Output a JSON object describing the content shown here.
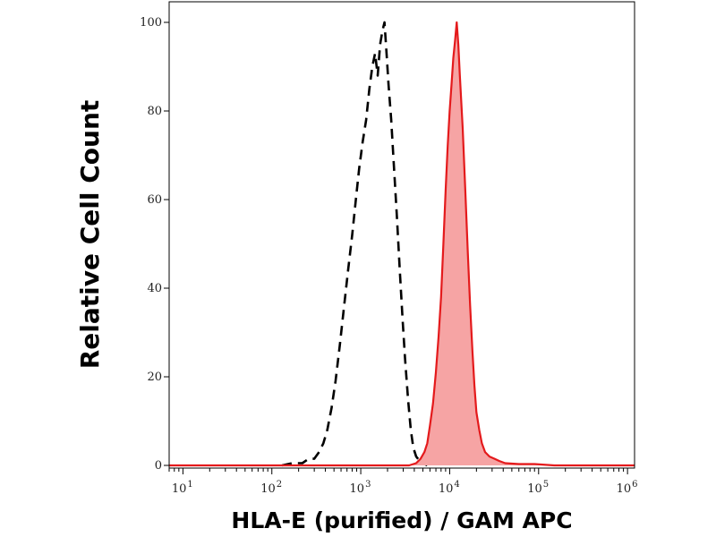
{
  "chart_data": {
    "type": "area",
    "xlabel": "HLA-E (purified) / GAM APC",
    "ylabel": "Relative Cell Count",
    "x_scale": "log",
    "xlim": [
      7,
      1200000
    ],
    "ylim": [
      0,
      100
    ],
    "x_ticks": [
      {
        "value": 10,
        "base": "10",
        "exp": "1"
      },
      {
        "value": 100,
        "base": "10",
        "exp": "2"
      },
      {
        "value": 1000,
        "base": "10",
        "exp": "3"
      },
      {
        "value": 10000,
        "base": "10",
        "exp": "4"
      },
      {
        "value": 100000,
        "base": "10",
        "exp": "5"
      },
      {
        "value": 1000000,
        "base": "10",
        "exp": "6"
      }
    ],
    "y_ticks": [
      "0",
      "20",
      "40",
      "60",
      "80",
      "100"
    ],
    "grid": false,
    "legend": "none",
    "series": [
      {
        "style": "dashed",
        "color": "#000000",
        "fill": "none",
        "points": [
          [
            130,
            0
          ],
          [
            170,
            0.5
          ],
          [
            220,
            0.5
          ],
          [
            260,
            1.5
          ],
          [
            300,
            1.5
          ],
          [
            340,
            3
          ],
          [
            380,
            5
          ],
          [
            420,
            8
          ],
          [
            470,
            13
          ],
          [
            520,
            19
          ],
          [
            580,
            27
          ],
          [
            650,
            36
          ],
          [
            720,
            44
          ],
          [
            800,
            52
          ],
          [
            880,
            60
          ],
          [
            960,
            67
          ],
          [
            1050,
            73
          ],
          [
            1150,
            78
          ],
          [
            1250,
            85
          ],
          [
            1350,
            90
          ],
          [
            1450,
            93
          ],
          [
            1550,
            88
          ],
          [
            1650,
            95
          ],
          [
            1750,
            98
          ],
          [
            1850,
            100
          ],
          [
            1950,
            93
          ],
          [
            2050,
            86
          ],
          [
            2200,
            78
          ],
          [
            2350,
            68
          ],
          [
            2550,
            56
          ],
          [
            2750,
            44
          ],
          [
            2950,
            33
          ],
          [
            3150,
            24
          ],
          [
            3400,
            15
          ],
          [
            3650,
            8
          ],
          [
            3900,
            4
          ],
          [
            4200,
            2
          ],
          [
            4600,
            1
          ],
          [
            5000,
            0.5
          ],
          [
            5600,
            0
          ]
        ]
      },
      {
        "style": "solid",
        "color": "#e41a1c",
        "fill": "#f6a4a4",
        "points": [
          [
            7,
            0
          ],
          [
            3500,
            0
          ],
          [
            4200,
            0.5
          ],
          [
            4700,
            1.5
          ],
          [
            5200,
            3
          ],
          [
            5600,
            5
          ],
          [
            6000,
            9
          ],
          [
            6500,
            14
          ],
          [
            7000,
            21
          ],
          [
            7500,
            29
          ],
          [
            8000,
            38
          ],
          [
            8500,
            50
          ],
          [
            9000,
            62
          ],
          [
            9500,
            72
          ],
          [
            10000,
            80
          ],
          [
            10500,
            86
          ],
          [
            11000,
            92
          ],
          [
            11500,
            96
          ],
          [
            12000,
            100
          ],
          [
            12500,
            95
          ],
          [
            13000,
            88
          ],
          [
            14000,
            76
          ],
          [
            15000,
            62
          ],
          [
            16000,
            48
          ],
          [
            17000,
            36
          ],
          [
            18000,
            26
          ],
          [
            19000,
            18
          ],
          [
            20000,
            12
          ],
          [
            21500,
            8
          ],
          [
            23000,
            5
          ],
          [
            25000,
            3
          ],
          [
            28000,
            2
          ],
          [
            32000,
            1.5
          ],
          [
            36000,
            1
          ],
          [
            42000,
            0.5
          ],
          [
            60000,
            0.3
          ],
          [
            90000,
            0.3
          ],
          [
            150000,
            0
          ],
          [
            400000,
            0
          ],
          [
            1200000,
            0
          ]
        ]
      }
    ]
  }
}
